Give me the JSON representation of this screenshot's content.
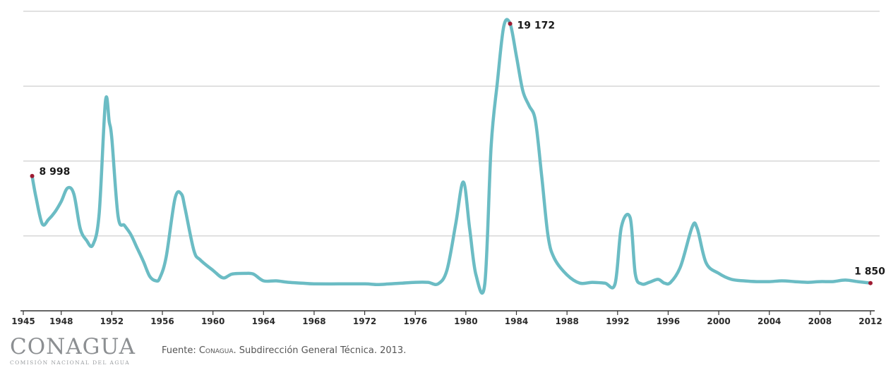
{
  "chart_data": {
    "type": "line",
    "title": "",
    "xlabel": "",
    "ylabel": "",
    "x_ticks": [
      "1945",
      "1948",
      "1952",
      "1956",
      "1960",
      "1964",
      "1968",
      "1972",
      "1976",
      "1980",
      "1984",
      "1988",
      "1992",
      "1996",
      "2000",
      "2004",
      "2008",
      "2012"
    ],
    "xlim": [
      1945,
      2012
    ],
    "ylim": [
      0,
      20000
    ],
    "grid": true,
    "line_color": "#6bbcc4",
    "marker_color": "#9e1b32",
    "series": [
      {
        "name": "",
        "x": [
          1945.7,
          1946.0,
          1946.5,
          1947.0,
          1947.5,
          1948.0,
          1948.5,
          1949.0,
          1949.5,
          1950.0,
          1950.5,
          1951.0,
          1951.5,
          1951.8,
          1952.0,
          1952.5,
          1953.0,
          1953.5,
          1954.0,
          1954.5,
          1955.0,
          1955.5,
          1955.8,
          1956.3,
          1957.0,
          1957.5,
          1957.8,
          1958.5,
          1959.0,
          1960.0,
          1960.8,
          1961.5,
          1962.5,
          1963.2,
          1964.0,
          1965.0,
          1966.0,
          1967.0,
          1968.0,
          1970.0,
          1972.0,
          1973.0,
          1974.0,
          1975.0,
          1976.0,
          1977.0,
          1977.8,
          1978.5,
          1979.2,
          1979.8,
          1980.3,
          1980.8,
          1981.5,
          1982.0,
          1982.5,
          1983.0,
          1983.5,
          1984.0,
          1984.5,
          1985.0,
          1985.5,
          1986.0,
          1986.5,
          1987.0,
          1988.0,
          1989.0,
          1990.0,
          1991.0,
          1991.8,
          1992.3,
          1993.0,
          1993.4,
          1993.9,
          1994.5,
          1995.2,
          1995.7,
          1996.2,
          1997.0,
          1997.9,
          1998.3,
          1999.0,
          2000.0,
          2001.0,
          2002.0,
          2003.0,
          2004.0,
          2005.0,
          2006.0,
          2007.0,
          2008.0,
          2009.0,
          2010.0,
          2011.0,
          2012.0
        ],
        "y": [
          8998,
          7600,
          5800,
          6100,
          6600,
          7300,
          8200,
          7800,
          5500,
          4700,
          4400,
          6500,
          14000,
          12600,
          11500,
          6300,
          5700,
          5100,
          4200,
          3300,
          2300,
          2000,
          2200,
          3600,
          7500,
          7800,
          6800,
          4000,
          3400,
          2700,
          2200,
          2450,
          2500,
          2450,
          2000,
          2000,
          1900,
          1850,
          1800,
          1800,
          1800,
          1750,
          1800,
          1850,
          1900,
          1900,
          1800,
          2700,
          5800,
          8600,
          5500,
          2400,
          1800,
          11000,
          15300,
          19000,
          19172,
          17000,
          14700,
          13700,
          12700,
          9000,
          5000,
          3500,
          2400,
          1850,
          1900,
          1850,
          1800,
          5600,
          6200,
          2450,
          1800,
          1900,
          2100,
          1850,
          1900,
          3000,
          5600,
          5500,
          3200,
          2500,
          2100,
          2000,
          1950,
          1950,
          2000,
          1950,
          1900,
          1950,
          1950,
          2050,
          1950,
          1850
        ]
      }
    ],
    "annotations": [
      {
        "x": 1945.7,
        "y": 8998,
        "label": "8 998"
      },
      {
        "x": 1983.5,
        "y": 19172,
        "label": "19 172"
      },
      {
        "x": 2012.0,
        "y": 1850,
        "label": "1 850"
      }
    ]
  },
  "footer": {
    "logo_text": "CONAGUA",
    "logo_subtitle": "COMISIÓN NACIONAL DEL AGUA",
    "source_prefix": "Fuente: ",
    "source_org": "Conagua",
    "source_rest": ". Subdirección General Técnica. 2013."
  }
}
